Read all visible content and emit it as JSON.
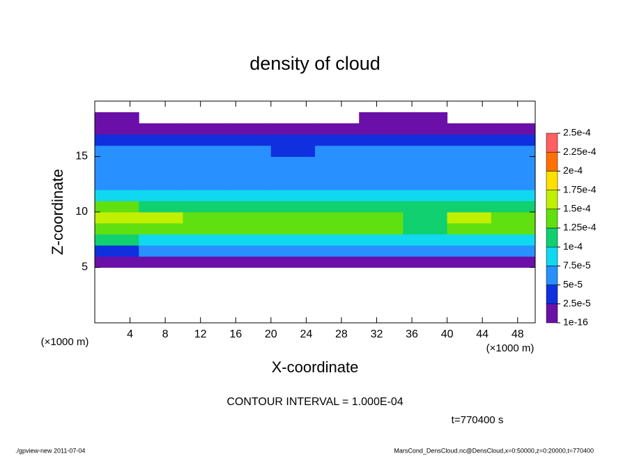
{
  "chart_data": {
    "type": "heatmap",
    "title": "density of cloud",
    "x_label": "X-coordinate",
    "y_label": "Z-coordinate",
    "x_unit_left": "(×1000 m)",
    "x_unit_right": "(×1000 m)",
    "contour_note": "CONTOUR INTERVAL = 1.000E-04",
    "time_note": "t=770400 s",
    "footer_left": "./gpview-new  2011-07-04",
    "footer_right": "MarsCond_DensCloud.nc@DensCloud,x=0:50000,z=0:20000,t=770400",
    "xlim": [
      0,
      50
    ],
    "ylim": [
      0,
      20
    ],
    "xticks": [
      4,
      8,
      12,
      16,
      20,
      24,
      28,
      32,
      36,
      40,
      44,
      48
    ],
    "yticks": [
      5,
      10,
      15
    ],
    "x_edges": [
      0,
      5,
      10,
      15,
      20,
      25,
      30,
      35,
      40,
      45,
      50
    ],
    "z_edges": [
      5,
      6,
      7,
      8,
      9,
      10,
      11,
      12,
      13,
      14,
      15,
      16,
      17,
      18,
      19
    ],
    "values": [
      [
        1.5e-05,
        1.2e-05,
        1.8e-05,
        1.5e-05,
        1.2e-05,
        1.5e-05,
        2e-05,
        1.8e-05,
        1.5e-05,
        1.5e-05
      ],
      [
        4.5e-05,
        5.5e-05,
        5e-05,
        6e-05,
        5e-05,
        5.5e-05,
        6.5e-05,
        6e-05,
        5e-05,
        5.5e-05
      ],
      [
        0.000105,
        9e-05,
        9.5e-05,
        8.5e-05,
        9e-05,
        9.5e-05,
        8e-05,
        8e-05,
        9e-05,
        9.5e-05
      ],
      [
        0.000145,
        0.00014,
        0.00013,
        0.00013,
        0.00013,
        0.000135,
        0.00013,
        0.000115,
        0.000135,
        0.00013
      ],
      [
        0.00016,
        0.000155,
        0.00014,
        0.000135,
        0.00014,
        0.000135,
        0.00014,
        0.00012,
        0.000155,
        0.00014
      ],
      [
        0.00013,
        0.00012,
        0.000115,
        0.00011,
        0.00011,
        0.000115,
        0.00011,
        0.000105,
        0.00012,
        0.000115
      ],
      [
        9.5e-05,
        8.5e-05,
        8.5e-05,
        8e-05,
        7.5e-05,
        8e-05,
        8e-05,
        9e-05,
        8.5e-05,
        8e-05
      ],
      [
        7e-05,
        7e-05,
        6.5e-05,
        6.5e-05,
        6.5e-05,
        7e-05,
        6.5e-05,
        6.5e-05,
        6.5e-05,
        6.5e-05
      ],
      [
        6.5e-05,
        6.5e-05,
        6e-05,
        6e-05,
        6e-05,
        6.5e-05,
        6e-05,
        6e-05,
        6e-05,
        6e-05
      ],
      [
        6e-05,
        6e-05,
        5.5e-05,
        6e-05,
        5.5e-05,
        6e-05,
        5.5e-05,
        5.5e-05,
        5.5e-05,
        5.5e-05
      ],
      [
        5.5e-05,
        5e-05,
        5e-05,
        5e-05,
        4.5e-05,
        5e-05,
        5e-05,
        5e-05,
        5e-05,
        5e-05
      ],
      [
        3.5e-05,
        3.5e-05,
        3e-05,
        3e-05,
        3e-05,
        3.5e-05,
        3.5e-05,
        3.5e-05,
        3e-05,
        3e-05
      ],
      [
        1e-05,
        1e-05,
        1e-05,
        1e-05,
        1e-05,
        1e-05,
        1e-05,
        1e-05,
        1e-05,
        1e-05
      ],
      [
        5e-06,
        null,
        null,
        null,
        null,
        null,
        5e-06,
        5e-06,
        null,
        null
      ]
    ],
    "levels": [
      {
        "value": 1e-16,
        "label": "1e-16"
      },
      {
        "value": 2.5e-05,
        "label": "2.5e-5"
      },
      {
        "value": 5e-05,
        "label": "5e-5"
      },
      {
        "value": 7.5e-05,
        "label": "7.5e-5"
      },
      {
        "value": 0.0001,
        "label": "1e-4"
      },
      {
        "value": 0.000125,
        "label": "1.25e-4"
      },
      {
        "value": 0.00015,
        "label": "1.5e-4"
      },
      {
        "value": 0.000175,
        "label": "1.75e-4"
      },
      {
        "value": 0.0002,
        "label": "2e-4"
      },
      {
        "value": 0.000225,
        "label": "2.25e-4"
      },
      {
        "value": 0.00025,
        "label": "2.5e-4"
      }
    ],
    "colors": [
      "#6a10a8",
      "#1030e0",
      "#2890ff",
      "#10d8f0",
      "#10d070",
      "#60e010",
      "#c0f000",
      "#ffe000",
      "#ff7000",
      "#ff6060"
    ]
  }
}
